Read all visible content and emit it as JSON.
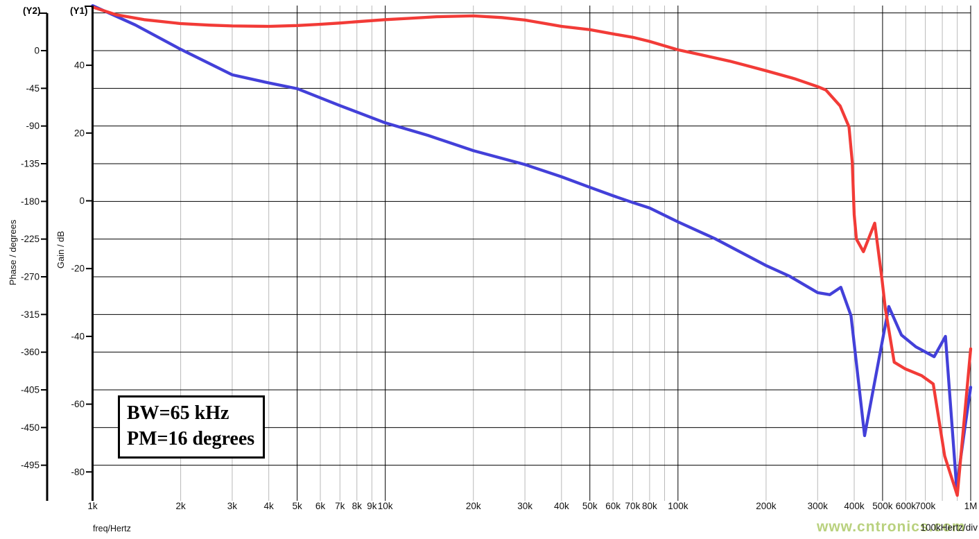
{
  "labels": {
    "y2_indicator": "(Y2)",
    "y1_indicator": "(Y1)",
    "y2_axis_title": "Phase / degrees",
    "y1_axis_title": "Gain / dB",
    "x_axis_title": "freq/Hertz",
    "x_div_note": "100kHertz/div",
    "watermark": "www.cntronics.com"
  },
  "annotation": {
    "line1": "BW=65 kHz",
    "line2": "PM=16 degrees"
  },
  "colors": {
    "grid_major": "#000000",
    "grid_minor": "#b9b9b9",
    "axis": "#000000",
    "tick_text": "#111111",
    "gain_curve": "#4340d9",
    "phase_curve": "#f23b37",
    "watermark": "#b9d17e",
    "annotation_border": "#000000"
  },
  "chart_data": {
    "type": "line",
    "title": "",
    "x_axis": {
      "label": "freq/Hertz",
      "scale": "log",
      "range_hz": [
        1000,
        1000000
      ],
      "div_note": "100kHertz/div",
      "ticks": [
        {
          "f": 1000,
          "label": "1k",
          "major": true
        },
        {
          "f": 2000,
          "label": "2k",
          "major": false
        },
        {
          "f": 3000,
          "label": "3k",
          "major": false
        },
        {
          "f": 4000,
          "label": "4k",
          "major": false
        },
        {
          "f": 5000,
          "label": "5k",
          "major": true
        },
        {
          "f": 6000,
          "label": "6k",
          "major": false
        },
        {
          "f": 7000,
          "label": "7k",
          "major": false
        },
        {
          "f": 8000,
          "label": "8k",
          "major": false
        },
        {
          "f": 9000,
          "label": "9k",
          "major": false
        },
        {
          "f": 10000,
          "label": "10k",
          "major": true
        },
        {
          "f": 20000,
          "label": "20k",
          "major": false
        },
        {
          "f": 30000,
          "label": "30k",
          "major": false
        },
        {
          "f": 40000,
          "label": "40k",
          "major": false
        },
        {
          "f": 50000,
          "label": "50k",
          "major": true
        },
        {
          "f": 60000,
          "label": "60k",
          "major": false
        },
        {
          "f": 70000,
          "label": "70k",
          "major": false
        },
        {
          "f": 80000,
          "label": "80k",
          "major": false
        },
        {
          "f": 90000,
          "label": "",
          "major": false
        },
        {
          "f": 100000,
          "label": "100k",
          "major": true
        },
        {
          "f": 200000,
          "label": "200k",
          "major": false
        },
        {
          "f": 300000,
          "label": "300k",
          "major": false
        },
        {
          "f": 400000,
          "label": "400k",
          "major": false
        },
        {
          "f": 500000,
          "label": "500k",
          "major": true
        },
        {
          "f": 600000,
          "label": "600k",
          "major": false
        },
        {
          "f": 700000,
          "label": "700k",
          "major": false
        },
        {
          "f": 800000,
          "label": "",
          "major": false
        },
        {
          "f": 900000,
          "label": "",
          "major": false
        },
        {
          "f": 1000000,
          "label": "1M",
          "major": true
        }
      ]
    },
    "y1_axis": {
      "label": "Gain / dB",
      "units": "dB",
      "range_db": [
        -87.7,
        57.6
      ],
      "ticks_db": [
        40,
        20,
        0,
        -20,
        -40,
        -60,
        -80
      ]
    },
    "y2_axis": {
      "label": "Phase / degrees",
      "units": "degrees",
      "range_deg": [
        -534,
        53.8
      ],
      "ticks_deg": [
        0,
        -45,
        -90,
        -135,
        -180,
        -225,
        -270,
        -315,
        -360,
        -405,
        -450,
        -495
      ],
      "extra_gridlines_deg": [
        45
      ]
    },
    "legend": null,
    "annotations": [
      "BW=65 kHz",
      "PM=16 degrees"
    ],
    "series": [
      {
        "name": "Gain",
        "axis": "y1",
        "color": "#4340d9",
        "points": [
          [
            1000,
            57.6
          ],
          [
            1400,
            51.9
          ],
          [
            2000,
            44.7
          ],
          [
            3000,
            37.2
          ],
          [
            4000,
            34.8
          ],
          [
            5000,
            33.1
          ],
          [
            7000,
            28.1
          ],
          [
            10000,
            23.0
          ],
          [
            14000,
            19.3
          ],
          [
            20000,
            14.8
          ],
          [
            30000,
            10.7
          ],
          [
            40000,
            7.1
          ],
          [
            50000,
            4.0
          ],
          [
            60000,
            1.5
          ],
          [
            70000,
            -0.5
          ],
          [
            80000,
            -2.1
          ],
          [
            100000,
            -6.2
          ],
          [
            134000,
            -11.2
          ],
          [
            200000,
            -19.1
          ],
          [
            240000,
            -22.2
          ],
          [
            300000,
            -27.1
          ],
          [
            330000,
            -27.7
          ],
          [
            360000,
            -25.5
          ],
          [
            390000,
            -33.9
          ],
          [
            434000,
            -69.3
          ],
          [
            525000,
            -31.2
          ],
          [
            580000,
            -39.6
          ],
          [
            650000,
            -43.1
          ],
          [
            750000,
            -46.0
          ],
          [
            820000,
            -40.0
          ],
          [
            895000,
            -84.6
          ],
          [
            955000,
            -67.0
          ],
          [
            1000000,
            -55.0
          ]
        ]
      },
      {
        "name": "Phase",
        "axis": "y2",
        "color": "#f23b37",
        "points": [
          [
            1000,
            52
          ],
          [
            1200,
            43
          ],
          [
            1500,
            37
          ],
          [
            2000,
            32.3
          ],
          [
            2500,
            30.5
          ],
          [
            3000,
            29.5
          ],
          [
            4000,
            29
          ],
          [
            5000,
            30
          ],
          [
            6000,
            31.5
          ],
          [
            7000,
            33
          ],
          [
            8000,
            34.5
          ],
          [
            10000,
            37
          ],
          [
            12000,
            38.5
          ],
          [
            15000,
            40.5
          ],
          [
            20000,
            41.5
          ],
          [
            25000,
            39.5
          ],
          [
            30000,
            36.5
          ],
          [
            35000,
            32.5
          ],
          [
            40000,
            29
          ],
          [
            50000,
            25
          ],
          [
            60000,
            20
          ],
          [
            70000,
            16
          ],
          [
            80000,
            11
          ],
          [
            100000,
            1
          ],
          [
            120000,
            -5
          ],
          [
            150000,
            -12.5
          ],
          [
            170000,
            -17.5
          ],
          [
            200000,
            -24
          ],
          [
            250000,
            -33.5
          ],
          [
            300000,
            -43
          ],
          [
            320000,
            -47
          ],
          [
            358000,
            -66
          ],
          [
            384000,
            -91
          ],
          [
            394000,
            -133
          ],
          [
            400000,
            -196
          ],
          [
            407000,
            -225
          ],
          [
            430000,
            -240
          ],
          [
            470000,
            -206
          ],
          [
            497000,
            -271
          ],
          [
            511000,
            -308
          ],
          [
            548000,
            -372
          ],
          [
            598000,
            -380
          ],
          [
            680000,
            -388
          ],
          [
            745000,
            -398
          ],
          [
            815000,
            -484
          ],
          [
            900000,
            -531
          ],
          [
            1000000,
            -356
          ]
        ]
      }
    ]
  }
}
